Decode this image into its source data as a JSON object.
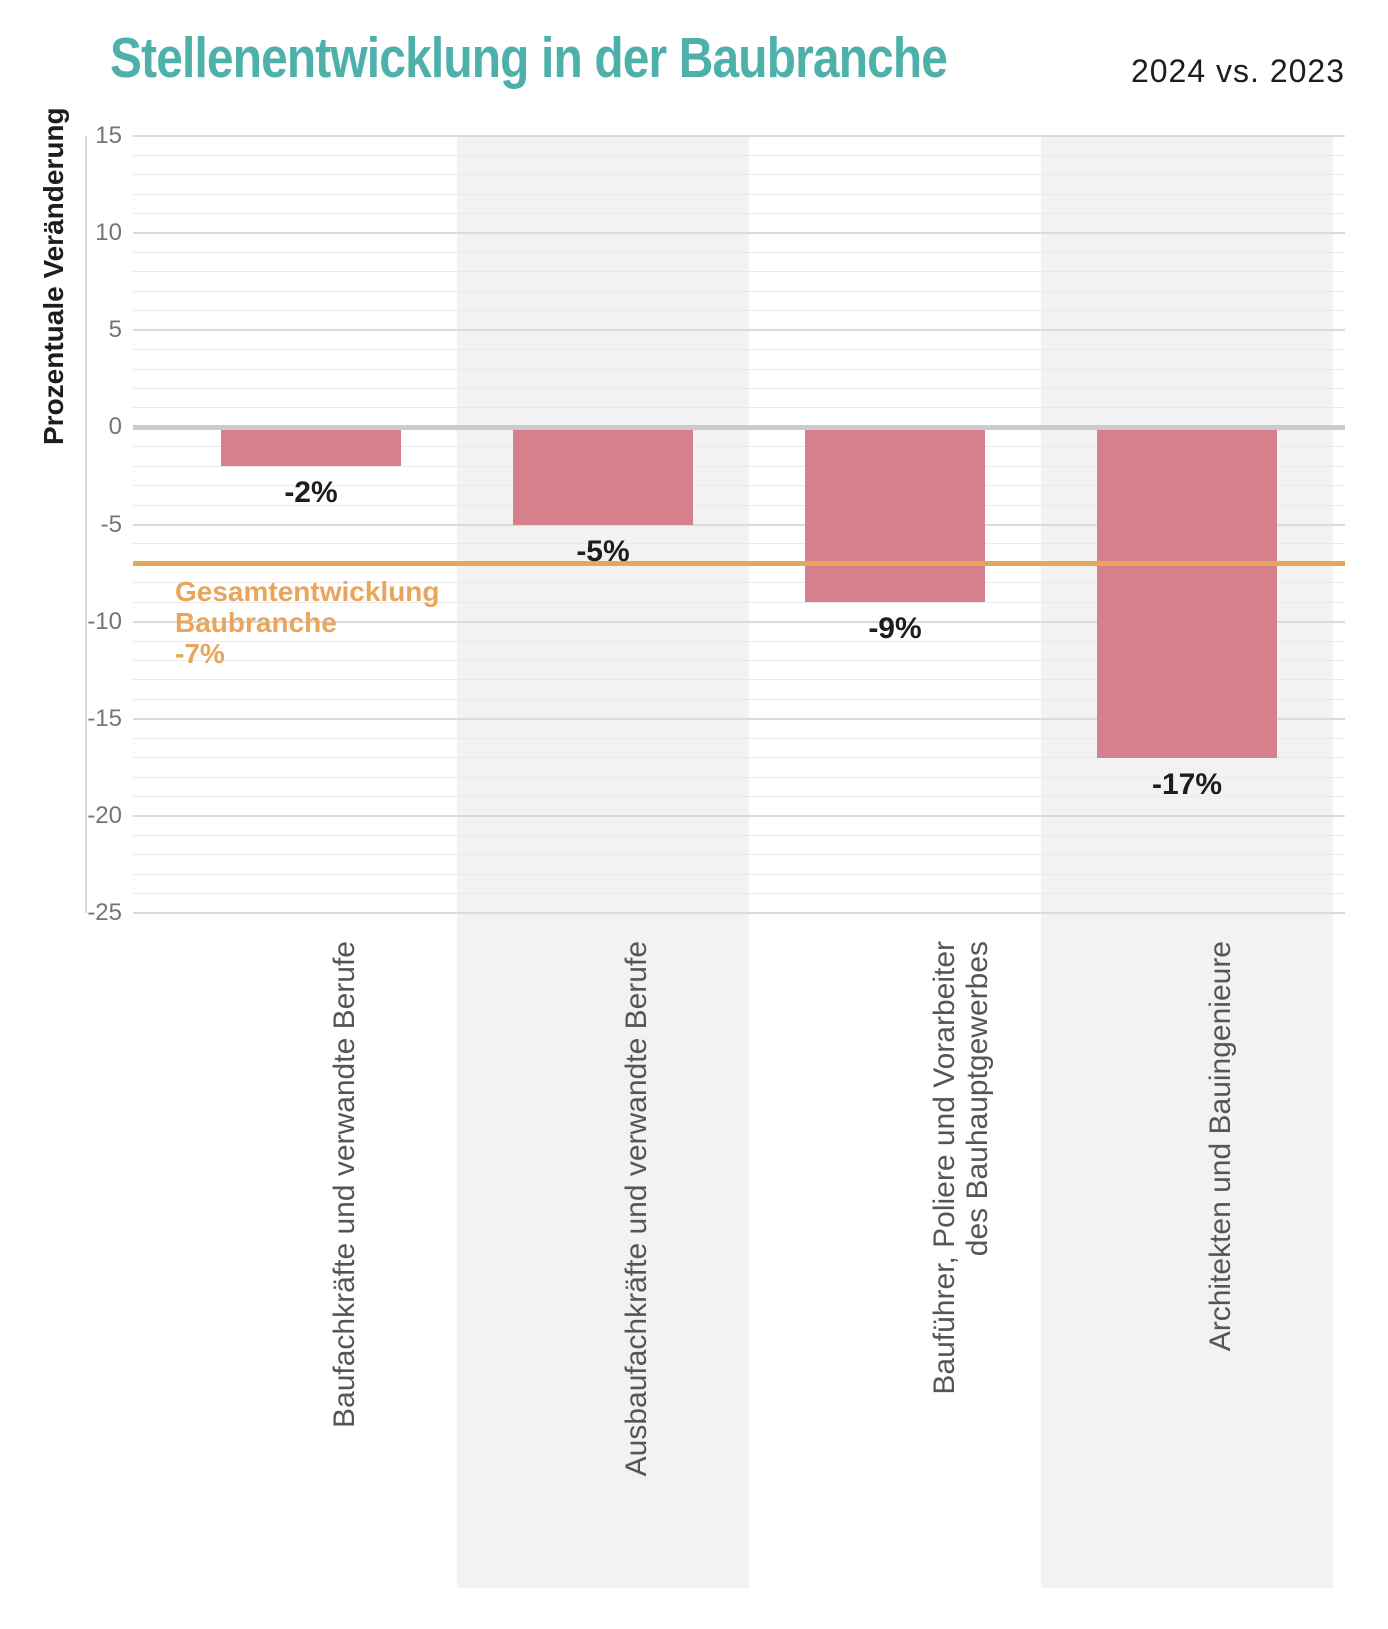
{
  "header": {
    "title": "Stellenentwicklung in der Baubranche",
    "subtitle": "2024 vs. 2023"
  },
  "chart_data": {
    "type": "bar",
    "title": "Stellenentwicklung in der Baubranche",
    "subtitle": "2024 vs. 2023",
    "ylabel": "Prozentuale Veränderung",
    "xlabel": "",
    "ylim": [
      -25,
      15
    ],
    "ytick_major_step": 5,
    "ytick_minor_step": 1,
    "ytick_labels": [
      "15",
      "10",
      "5",
      "0",
      "-5",
      "-10",
      "-15",
      "-20",
      "-25"
    ],
    "grid": "on",
    "categories": [
      "Baufachkräfte und verwandte Berufe",
      "Ausbaufachkräfte und verwandte Berufe",
      "Bauführer, Poliere und Vorarbeiter\ndes Bauhauptgewerbes",
      "Architekten und Bauingenieure"
    ],
    "values": [
      -2,
      -5,
      -9,
      -17
    ],
    "bar_labels": [
      "-2%",
      "-5%",
      "-9%",
      "-17%"
    ],
    "banded_columns": [
      1,
      3
    ],
    "reference_line": {
      "value": -7,
      "label": "Gesamtentwicklung\nBaubranche\n-7%"
    },
    "colors": {
      "bar": "#d5808b",
      "reference": "#eaa55c",
      "title": "#4db1aa",
      "band": "#f2f2f2",
      "zero_line": "#cbcbcb",
      "gridline": "#eaeaea",
      "tick_text": "#757575",
      "category_text": "#555557",
      "value_text": "#1d1d1b"
    }
  }
}
